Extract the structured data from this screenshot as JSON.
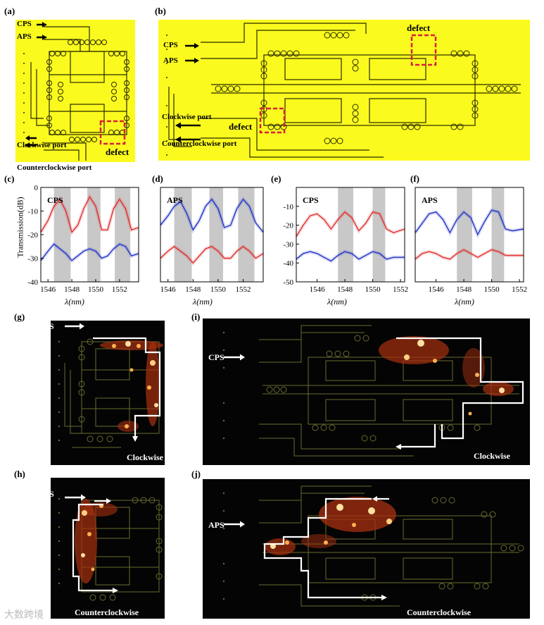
{
  "panels": {
    "a": {
      "label": "(a)",
      "cps": "CPS",
      "aps": "APS",
      "clockwise_port": "Clockwise port",
      "counterclockwise_port": "Counterclockwise port",
      "defect": "defect"
    },
    "b": {
      "label": "(b)",
      "cps": "CPS",
      "aps": "APS",
      "clockwise_port": "Clockwise port",
      "counterclockwise_port": "Counterclockwise port",
      "defect_top": "defect",
      "defect_left": "defect"
    },
    "g": {
      "label": "(g)",
      "source": "CPS",
      "direction": "Clockwise"
    },
    "h": {
      "label": "(h)",
      "source": "APS",
      "direction": "Counterclockwise"
    },
    "i": {
      "label": "(i)",
      "source": "CPS",
      "direction": "Clockwise"
    },
    "j": {
      "label": "(j)",
      "source": "APS",
      "direction": "Counterclockwise"
    }
  },
  "colors": {
    "chip": "#fafa1e",
    "waveguide": "#2a2a00",
    "defect": "#d8203a",
    "cps_curve": "#e03030",
    "aps_curve": "#2535c8",
    "band": "#c8c8c8",
    "dark_bg": "#040404",
    "dark_waveguide": "#6a6a30",
    "hot": "#ffb050",
    "arrow": "#ffffff"
  },
  "chart_data": [
    {
      "panel": "(c)",
      "type": "line",
      "ylabel": "Transmission(dB)",
      "xlabel": "λ(nm)",
      "xlim": [
        1545.4,
        1553.6
      ],
      "ylim": [
        -40,
        0
      ],
      "xticks": [
        1546,
        1548,
        1550,
        1552
      ],
      "yticks": [
        0,
        -10,
        -20,
        -30,
        -40
      ],
      "bands": [
        [
          1546.5,
          1547.9
        ],
        [
          1549.3,
          1550.4
        ],
        [
          1551.6,
          1552.9
        ]
      ],
      "series": [
        {
          "name": "CPS",
          "color": "#e03030",
          "x": [
            1545.4,
            1546.0,
            1546.5,
            1547.0,
            1547.5,
            1548.0,
            1548.5,
            1549.0,
            1549.5,
            1550.0,
            1550.5,
            1551.0,
            1551.5,
            1552.0,
            1552.5,
            1553.0,
            1553.6
          ],
          "y": [
            -19,
            -14,
            -8,
            -5,
            -10,
            -19,
            -16,
            -9,
            -4,
            -8,
            -18,
            -18,
            -9,
            -5,
            -9,
            -18,
            -17
          ]
        },
        {
          "name": "",
          "color": "#2535c8",
          "x": [
            1545.4,
            1546.0,
            1546.5,
            1547.0,
            1547.5,
            1548.0,
            1548.5,
            1549.0,
            1549.5,
            1550.0,
            1550.5,
            1551.0,
            1551.5,
            1552.0,
            1552.5,
            1553.0,
            1553.6
          ],
          "y": [
            -31,
            -27,
            -24,
            -26,
            -28,
            -31,
            -29,
            -27,
            -26,
            -27,
            -30,
            -29,
            -26,
            -24,
            -25,
            -29,
            -28
          ]
        }
      ]
    },
    {
      "panel": "(d)",
      "type": "line",
      "ylabel": "",
      "xlabel": "λ(nm)",
      "xlim": [
        1545.4,
        1553.6
      ],
      "ylim": [
        -40,
        0
      ],
      "xticks": [
        1546,
        1548,
        1550,
        1552
      ],
      "yticks": [],
      "bands": [
        [
          1546.5,
          1547.9
        ],
        [
          1549.3,
          1550.4
        ],
        [
          1551.6,
          1552.9
        ]
      ],
      "series": [
        {
          "name": "APS",
          "color": "#2535c8",
          "x": [
            1545.4,
            1546.0,
            1546.5,
            1547.0,
            1547.5,
            1548.0,
            1548.5,
            1549.0,
            1549.5,
            1550.0,
            1550.5,
            1551.0,
            1551.5,
            1552.0,
            1552.5,
            1553.0,
            1553.6
          ],
          "y": [
            -16,
            -12,
            -8,
            -6,
            -11,
            -18,
            -14,
            -8,
            -5,
            -9,
            -17,
            -16,
            -9,
            -5,
            -8,
            -15,
            -19
          ]
        },
        {
          "name": "",
          "color": "#e03030",
          "x": [
            1545.4,
            1546.0,
            1546.5,
            1547.0,
            1547.5,
            1548.0,
            1548.5,
            1549.0,
            1549.5,
            1550.0,
            1550.5,
            1551.0,
            1551.5,
            1552.0,
            1552.5,
            1553.0,
            1553.6
          ],
          "y": [
            -30,
            -27,
            -25,
            -27,
            -29,
            -32,
            -29,
            -26,
            -25,
            -27,
            -30,
            -30,
            -27,
            -25,
            -27,
            -30,
            -28
          ]
        }
      ]
    },
    {
      "panel": "(e)",
      "type": "line",
      "ylabel": "",
      "xlabel": "λ(nm)",
      "xlim": [
        1544.5,
        1552.3
      ],
      "ylim": [
        -50,
        0
      ],
      "xticks": [
        1546,
        1548,
        1550,
        1552
      ],
      "yticks": [
        -10,
        -20,
        -30,
        -40,
        -50
      ],
      "bands": [
        [
          1547.5,
          1548.6
        ],
        [
          1550.0,
          1550.9
        ]
      ],
      "series": [
        {
          "name": "CPS",
          "color": "#e03030",
          "x": [
            1544.5,
            1545.0,
            1545.5,
            1546.0,
            1546.5,
            1547.0,
            1547.5,
            1548.0,
            1548.5,
            1549.0,
            1549.5,
            1550.0,
            1550.5,
            1551.0,
            1551.5,
            1552.3
          ],
          "y": [
            -26,
            -20,
            -15,
            -14,
            -17,
            -22,
            -17,
            -13,
            -16,
            -23,
            -19,
            -13,
            -14,
            -22,
            -24,
            -22
          ]
        },
        {
          "name": "",
          "color": "#2535c8",
          "x": [
            1544.5,
            1545.0,
            1545.5,
            1546.0,
            1546.5,
            1547.0,
            1547.5,
            1548.0,
            1548.5,
            1549.0,
            1549.5,
            1550.0,
            1550.5,
            1551.0,
            1551.5,
            1552.3
          ],
          "y": [
            -38,
            -35,
            -34,
            -35,
            -37,
            -39,
            -36,
            -34,
            -35,
            -38,
            -36,
            -34,
            -35,
            -38,
            -37,
            -37
          ]
        }
      ]
    },
    {
      "panel": "(f)",
      "type": "line",
      "ylabel": "",
      "xlabel": "λ(nm)",
      "xlim": [
        1544.5,
        1552.3
      ],
      "ylim": [
        -50,
        0
      ],
      "xticks": [
        1546,
        1548,
        1550,
        1552
      ],
      "yticks": [],
      "bands": [
        [
          1547.5,
          1548.6
        ],
        [
          1550.0,
          1550.9
        ]
      ],
      "series": [
        {
          "name": "APS",
          "color": "#2535c8",
          "x": [
            1544.5,
            1545.0,
            1545.5,
            1546.0,
            1546.5,
            1547.0,
            1547.5,
            1548.0,
            1548.5,
            1549.0,
            1549.5,
            1550.0,
            1550.5,
            1551.0,
            1551.5,
            1552.3
          ],
          "y": [
            -24,
            -19,
            -14,
            -13,
            -17,
            -24,
            -17,
            -13,
            -16,
            -25,
            -18,
            -12,
            -13,
            -22,
            -23,
            -22
          ]
        },
        {
          "name": "",
          "color": "#e03030",
          "x": [
            1544.5,
            1545.0,
            1545.5,
            1546.0,
            1546.5,
            1547.0,
            1547.5,
            1548.0,
            1548.5,
            1549.0,
            1549.5,
            1550.0,
            1550.5,
            1551.0,
            1551.5,
            1552.3
          ],
          "y": [
            -38,
            -35,
            -34,
            -35,
            -37,
            -38,
            -35,
            -33,
            -35,
            -37,
            -35,
            -33,
            -34,
            -36,
            -36,
            -36
          ]
        }
      ]
    }
  ],
  "watermark": "大数跨境"
}
